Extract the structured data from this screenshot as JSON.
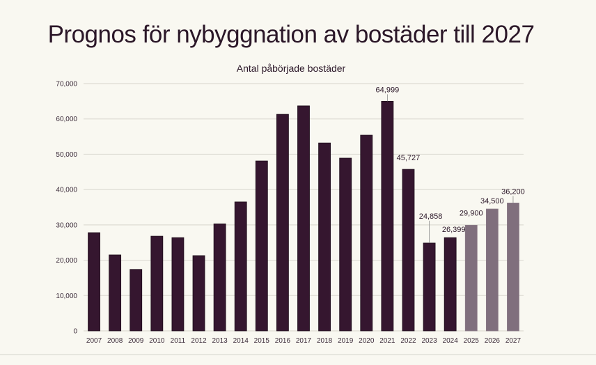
{
  "chart_data": {
    "type": "bar",
    "title": "Prognos för nybyggnation av bostäder till 2027",
    "subtitle": "Antal påbörjade bostäder",
    "xlabel": "",
    "ylabel": "",
    "ylim": [
      0,
      70000
    ],
    "yticks": [
      0,
      10000,
      20000,
      30000,
      40000,
      50000,
      60000,
      70000
    ],
    "ytick_labels": [
      "0",
      "10,000",
      "20,000",
      "30,000",
      "40,000",
      "50,000",
      "60,000",
      "70,000"
    ],
    "grid": true,
    "categories": [
      "2007",
      "2008",
      "2009",
      "2010",
      "2011",
      "2012",
      "2013",
      "2014",
      "2015",
      "2016",
      "2017",
      "2018",
      "2019",
      "2020",
      "2021",
      "2022",
      "2023",
      "2024",
      "2025",
      "2026",
      "2027"
    ],
    "values": [
      27800,
      21500,
      17400,
      26800,
      26400,
      21300,
      30300,
      36500,
      48100,
      61300,
      63700,
      53200,
      48900,
      55400,
      64999,
      45727,
      24858,
      26399,
      29900,
      34500,
      36200
    ],
    "forecast": [
      false,
      false,
      false,
      false,
      false,
      false,
      false,
      false,
      false,
      false,
      false,
      false,
      false,
      false,
      false,
      false,
      false,
      false,
      true,
      true,
      true
    ],
    "data_labels": {
      "2021": "64,999",
      "2022": "45,727",
      "2023": "24,858",
      "2024": "26,399",
      "2025": "29,900",
      "2026": "34,500",
      "2027": "36,200"
    },
    "colors": {
      "actual": "#35162f",
      "forecast": "#806f7d",
      "grid": "#dedcd4",
      "background": "#f9f8f1"
    }
  }
}
